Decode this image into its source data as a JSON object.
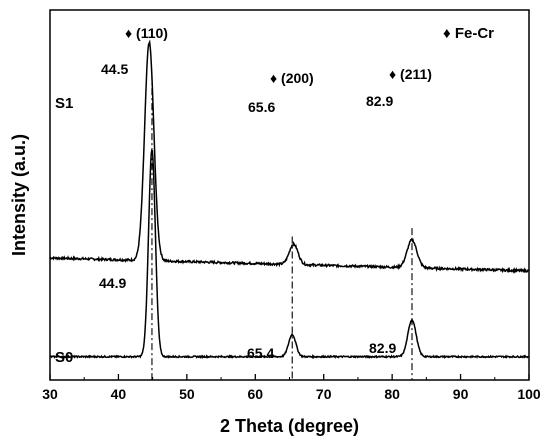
{
  "chart_data": {
    "type": "line",
    "xlabel": "2 Theta (degree)",
    "ylabel": "Intensity (a.u.)",
    "xlim": [
      30,
      100
    ],
    "x_ticks": [
      30,
      40,
      50,
      60,
      70,
      80,
      90,
      100
    ],
    "y_ticks_shown": false,
    "grid": false,
    "legend": {
      "symbol": "♦",
      "label": "Fe-Cr",
      "placement": "top-right"
    },
    "series": [
      {
        "name": "S1",
        "baseline": 0.33,
        "peaks": [
          {
            "x": 44.5,
            "height": 0.59,
            "width": 0.95,
            "label": "44.5"
          },
          {
            "x": 65.6,
            "height": 0.055,
            "width": 0.9,
            "label": "65.6"
          },
          {
            "x": 82.9,
            "height": 0.075,
            "width": 1.0,
            "label": "82.9"
          }
        ],
        "slope": -0.0005,
        "noise": 0.006
      },
      {
        "name": "S0",
        "baseline": 0.063,
        "peaks": [
          {
            "x": 44.9,
            "height": 0.56,
            "width": 0.7,
            "label": "44.9"
          },
          {
            "x": 65.4,
            "height": 0.06,
            "width": 0.75,
            "label": "65.4"
          },
          {
            "x": 82.9,
            "height": 0.1,
            "width": 0.85,
            "label": "82.9"
          }
        ],
        "slope": 0.0,
        "noise": 0.004
      }
    ],
    "reference_lines": [
      44.9,
      65.4,
      82.9
    ],
    "planes": [
      {
        "x": 44.5,
        "label": "(110)"
      },
      {
        "x": 65.6,
        "label": "(200)"
      },
      {
        "x": 82.9,
        "label": "(211)"
      }
    ],
    "plane_symbol": "♦"
  }
}
